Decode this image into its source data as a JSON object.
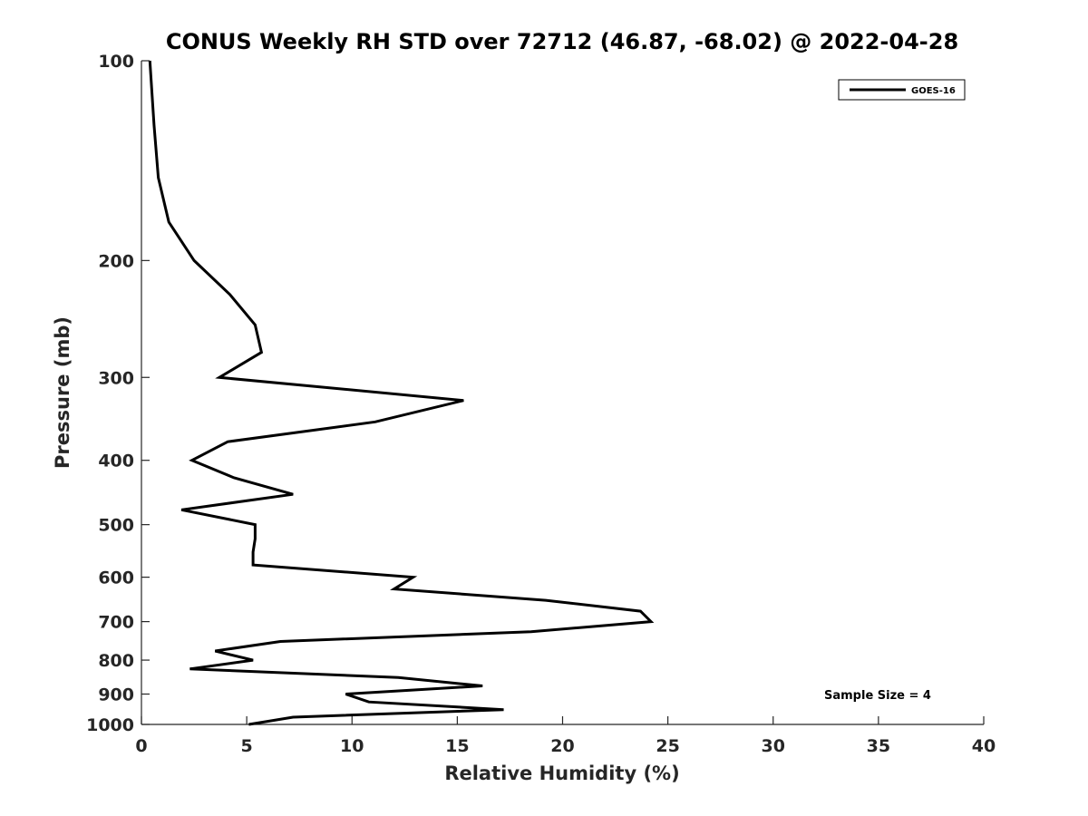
{
  "chart_data": {
    "type": "line",
    "title": "CONUS Weekly RH STD over 72712 (46.87, -68.02) @ 2022-04-28",
    "xlabel": "Relative Humidity (%)",
    "ylabel": "Pressure (mb)",
    "xlim": [
      0,
      40
    ],
    "ylim": [
      100,
      1000
    ],
    "y_scale": "log",
    "y_reversed": true,
    "x_ticks": [
      0,
      5,
      10,
      15,
      20,
      25,
      30,
      35,
      40
    ],
    "y_ticks": [
      100,
      200,
      300,
      400,
      500,
      600,
      700,
      800,
      900,
      1000
    ],
    "grid": false,
    "legend_position": "top-right",
    "series": [
      {
        "name": "GOES-16",
        "color": "#000000",
        "points": [
          [
            0.4,
            100
          ],
          [
            0.6,
            125
          ],
          [
            0.8,
            150
          ],
          [
            1.3,
            175
          ],
          [
            2.5,
            200
          ],
          [
            4.2,
            225
          ],
          [
            5.4,
            250
          ],
          [
            5.7,
            275
          ],
          [
            3.7,
            300
          ],
          [
            15.3,
            325
          ],
          [
            11.1,
            350
          ],
          [
            4.1,
            375
          ],
          [
            2.4,
            400
          ],
          [
            4.4,
            425
          ],
          [
            7.2,
            450
          ],
          [
            1.9,
            475
          ],
          [
            5.4,
            500
          ],
          [
            5.4,
            525
          ],
          [
            5.3,
            550
          ],
          [
            5.3,
            575
          ],
          [
            12.9,
            600
          ],
          [
            12.0,
            625
          ],
          [
            19.2,
            650
          ],
          [
            23.7,
            675
          ],
          [
            24.2,
            700
          ],
          [
            18.5,
            725
          ],
          [
            6.6,
            750
          ],
          [
            3.5,
            775
          ],
          [
            5.3,
            800
          ],
          [
            2.3,
            825
          ],
          [
            12.2,
            850
          ],
          [
            16.2,
            875
          ],
          [
            9.7,
            900
          ],
          [
            10.8,
            925
          ],
          [
            17.2,
            950
          ],
          [
            7.2,
            975
          ],
          [
            5.1,
            1000
          ]
        ]
      }
    ],
    "annotations": [
      {
        "text": "Sample Size = 4"
      }
    ]
  }
}
